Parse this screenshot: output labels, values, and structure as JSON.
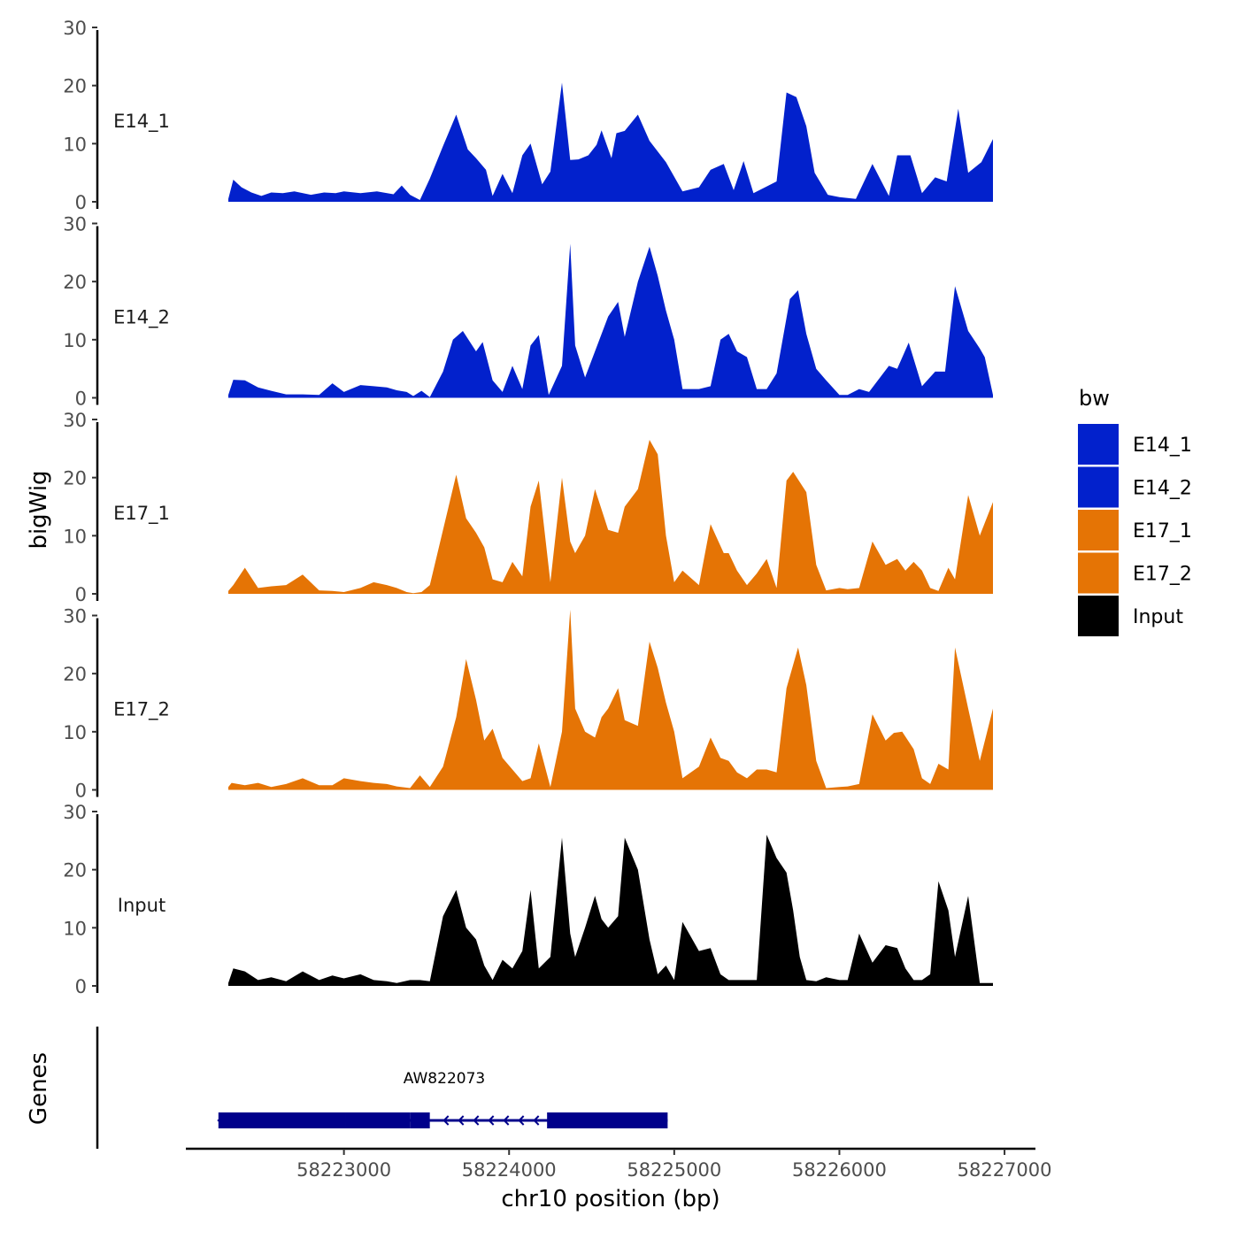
{
  "chart_data": {
    "type": "area",
    "title": "",
    "ylabel": "bigWig",
    "xlabel": "chr10 position (bp)",
    "gene_track_label": "Genes",
    "x_range": [
      58222300,
      58226930
    ],
    "x_ticks": [
      58223000,
      58224000,
      58225000,
      58226000,
      58227000
    ],
    "y_range": [
      0,
      30
    ],
    "y_ticks": [
      0,
      10,
      20,
      30
    ],
    "legend": {
      "title": "bw",
      "position": "right",
      "entries": [
        {
          "label": "E14_1",
          "color": "#0221CC"
        },
        {
          "label": "E14_2",
          "color": "#0221CC"
        },
        {
          "label": "E17_1",
          "color": "#E57405"
        },
        {
          "label": "E17_2",
          "color": "#E57405"
        },
        {
          "label": "Input",
          "color": "#000000"
        }
      ]
    },
    "series": [
      {
        "name": "E14_1",
        "color": "#0221CC",
        "x": [
          58222300,
          58222330,
          58222380,
          58222440,
          58222500,
          58222560,
          58222630,
          58222700,
          58222800,
          58222880,
          58222950,
          58223000,
          58223100,
          58223200,
          58223300,
          58223350,
          58223400,
          58223460,
          58223520,
          58223600,
          58223680,
          58223750,
          58223800,
          58223860,
          58223900,
          58223960,
          58224020,
          58224080,
          58224130,
          58224200,
          58224250,
          58224320,
          58224370,
          58224420,
          58224480,
          58224530,
          58224560,
          58224620,
          58224650,
          58224700,
          58224780,
          58224850,
          58224950,
          58225050,
          58225150,
          58225220,
          58225300,
          58225360,
          58225420,
          58225480,
          58225550,
          58225620,
          58225680,
          58225740,
          58225800,
          58225850,
          58225930,
          58226000,
          58226100,
          58226200,
          58226300,
          58226350,
          58226430,
          58226500,
          58226580,
          58226650,
          58226720,
          58226780,
          58226860,
          58226930
        ],
        "values": [
          0.5,
          3.8,
          2.5,
          1.6,
          1.0,
          1.6,
          1.5,
          1.8,
          1.2,
          1.6,
          1.5,
          1.8,
          1.5,
          1.8,
          1.3,
          2.8,
          1.2,
          0.3,
          4.0,
          9.6,
          15.0,
          9.0,
          7.5,
          5.5,
          1.0,
          4.8,
          1.5,
          8.0,
          10.0,
          3.0,
          5.2,
          20.5,
          7.2,
          7.3,
          8.0,
          9.8,
          12.3,
          7.5,
          11.8,
          12.2,
          15.0,
          10.5,
          6.8,
          1.8,
          2.5,
          5.5,
          6.5,
          2.0,
          7.0,
          1.5,
          2.5,
          3.5,
          18.8,
          18.0,
          13.0,
          5.0,
          1.2,
          0.8,
          0.5,
          6.5,
          1.0,
          8.0,
          8.0,
          1.5,
          4.2,
          3.5,
          16.0,
          5.0,
          6.8,
          10.8
        ]
      },
      {
        "name": "E14_2",
        "color": "#0221CC",
        "x": [
          58222300,
          58222330,
          58222400,
          58222480,
          58222560,
          58222650,
          58222750,
          58222850,
          58222930,
          58223000,
          58223100,
          58223180,
          58223260,
          58223320,
          58223380,
          58223420,
          58223470,
          58223520,
          58223600,
          58223660,
          58223720,
          58223800,
          58223840,
          58223900,
          58223960,
          58224020,
          58224080,
          58224130,
          58224180,
          58224240,
          58224320,
          58224370,
          58224400,
          58224460,
          58224520,
          58224600,
          58224660,
          58224700,
          58224780,
          58224850,
          58224900,
          58224950,
          58225000,
          58225050,
          58225150,
          58225220,
          58225280,
          58225330,
          58225380,
          58225440,
          58225500,
          58225560,
          58225620,
          58225700,
          58225750,
          58225800,
          58225860,
          58225920,
          58226000,
          58226050,
          58226120,
          58226180,
          58226300,
          58226350,
          58226420,
          58226500,
          58226580,
          58226640,
          58226700,
          58226780,
          58226850,
          58226880,
          58226930
        ],
        "values": [
          0.5,
          3.1,
          3.0,
          1.8,
          1.2,
          0.6,
          0.6,
          0.5,
          2.5,
          1.0,
          2.2,
          2.0,
          1.8,
          1.3,
          1.0,
          0.3,
          1.2,
          0.1,
          4.5,
          10.0,
          11.5,
          8.0,
          9.6,
          3.0,
          1.0,
          5.5,
          1.5,
          9.0,
          10.8,
          0.5,
          5.5,
          26.5,
          9.0,
          3.5,
          8.0,
          14.0,
          16.5,
          10.5,
          20.0,
          26.0,
          21.0,
          15.0,
          10.0,
          1.5,
          1.5,
          2.0,
          10.0,
          11.0,
          8.0,
          7.0,
          1.5,
          1.5,
          4.2,
          17.0,
          18.5,
          11.0,
          5.0,
          3.0,
          0.5,
          0.5,
          1.5,
          1.0,
          5.5,
          5.0,
          9.5,
          2.0,
          4.5,
          4.5,
          19.2,
          11.5,
          8.5,
          7.0,
          0.5
        ]
      },
      {
        "name": "E17_1",
        "color": "#E57405",
        "x": [
          58222300,
          58222330,
          58222400,
          58222480,
          58222560,
          58222650,
          58222750,
          58222850,
          58222930,
          58223000,
          58223100,
          58223180,
          58223260,
          58223320,
          58223380,
          58223420,
          58223470,
          58223520,
          58223600,
          58223680,
          58223740,
          58223800,
          58223850,
          58223900,
          58223960,
          58224020,
          58224080,
          58224130,
          58224180,
          58224250,
          58224320,
          58224370,
          58224400,
          58224460,
          58224520,
          58224600,
          58224660,
          58224700,
          58224780,
          58224850,
          58224900,
          58224950,
          58225000,
          58225050,
          58225150,
          58225220,
          58225300,
          58225330,
          58225380,
          58225440,
          58225500,
          58225560,
          58225620,
          58225680,
          58225720,
          58225800,
          58225860,
          58225920,
          58226000,
          58226050,
          58226120,
          58226200,
          58226280,
          58226350,
          58226400,
          58226450,
          58226500,
          58226550,
          58226600,
          58226660,
          58226700,
          58226780,
          58226850,
          58226930
        ],
        "values": [
          0.5,
          1.5,
          4.5,
          1.0,
          1.3,
          1.5,
          3.3,
          0.6,
          0.5,
          0.3,
          1.0,
          2.0,
          1.5,
          1.0,
          0.3,
          0.1,
          0.3,
          1.5,
          11.0,
          20.5,
          13.0,
          10.5,
          8.0,
          2.5,
          2.0,
          5.5,
          3.0,
          15.0,
          19.5,
          2.0,
          20.0,
          9.0,
          7.0,
          10.0,
          18.0,
          11.0,
          10.5,
          15.0,
          18.0,
          26.5,
          24.0,
          10.0,
          2.0,
          4.0,
          1.5,
          12.0,
          7.0,
          7.0,
          4.0,
          1.5,
          3.5,
          6.0,
          1.0,
          19.5,
          21.0,
          17.5,
          5.0,
          0.6,
          1.0,
          0.8,
          1.0,
          9.0,
          5.0,
          6.0,
          4.0,
          5.5,
          4.0,
          1.0,
          0.5,
          4.5,
          2.5,
          17.0,
          10.0,
          15.8
        ]
      },
      {
        "name": "E17_2",
        "color": "#E57405",
        "x": [
          58222300,
          58222320,
          58222400,
          58222480,
          58222560,
          58222650,
          58222750,
          58222850,
          58222930,
          58223000,
          58223100,
          58223180,
          58223260,
          58223320,
          58223400,
          58223460,
          58223520,
          58223600,
          58223680,
          58223740,
          58223800,
          58223850,
          58223900,
          58223960,
          58224020,
          58224080,
          58224130,
          58224180,
          58224250,
          58224320,
          58224370,
          58224400,
          58224460,
          58224520,
          58224560,
          58224600,
          58224660,
          58224700,
          58224780,
          58224850,
          58224900,
          58224950,
          58225000,
          58225050,
          58225150,
          58225220,
          58225280,
          58225330,
          58225380,
          58225440,
          58225500,
          58225560,
          58225620,
          58225680,
          58225750,
          58225800,
          58225860,
          58225920,
          58226000,
          58226050,
          58226120,
          58226200,
          58226280,
          58226330,
          58226380,
          58226450,
          58226500,
          58226550,
          58226600,
          58226660,
          58226700,
          58226780,
          58226850,
          58226930
        ],
        "values": [
          0.5,
          1.2,
          0.8,
          1.2,
          0.5,
          1.0,
          2.0,
          0.8,
          0.8,
          2.0,
          1.5,
          1.2,
          1.0,
          0.6,
          0.3,
          2.5,
          0.5,
          4.0,
          12.5,
          22.5,
          15.5,
          8.5,
          10.5,
          5.5,
          3.5,
          1.5,
          2.0,
          8.0,
          0.5,
          10.0,
          31.0,
          14.0,
          10.0,
          9.0,
          12.5,
          14.0,
          17.5,
          12.0,
          11.0,
          25.5,
          21.0,
          15.0,
          10.0,
          2.0,
          4.0,
          9.0,
          5.5,
          5.0,
          3.0,
          2.0,
          3.5,
          3.5,
          3.0,
          17.5,
          24.5,
          18.0,
          5.0,
          0.3,
          0.5,
          0.6,
          1.0,
          13.0,
          8.5,
          9.8,
          10.0,
          7.0,
          2.0,
          1.0,
          4.5,
          3.5,
          24.5,
          14.0,
          5.0,
          14.0
        ]
      },
      {
        "name": "Input",
        "color": "#000000",
        "x": [
          58222300,
          58222330,
          58222400,
          58222480,
          58222560,
          58222650,
          58222750,
          58222850,
          58222930,
          58223000,
          58223100,
          58223180,
          58223260,
          58223320,
          58223400,
          58223460,
          58223520,
          58223600,
          58223680,
          58223740,
          58223800,
          58223850,
          58223900,
          58223960,
          58224020,
          58224080,
          58224130,
          58224180,
          58224250,
          58224320,
          58224370,
          58224400,
          58224460,
          58224520,
          58224560,
          58224600,
          58224660,
          58224700,
          58224780,
          58224850,
          58224900,
          58224950,
          58225000,
          58225050,
          58225150,
          58225220,
          58225280,
          58225330,
          58225380,
          58225440,
          58225500,
          58225560,
          58225620,
          58225680,
          58225720,
          58225760,
          58225800,
          58225860,
          58225920,
          58226000,
          58226050,
          58226120,
          58226200,
          58226280,
          58226350,
          58226400,
          58226450,
          58226500,
          58226550,
          58226600,
          58226660,
          58226700,
          58226780,
          58226850,
          58226930
        ],
        "values": [
          0.5,
          3.0,
          2.5,
          1.0,
          1.5,
          0.8,
          2.5,
          1.0,
          1.8,
          1.3,
          2.0,
          1.0,
          0.8,
          0.5,
          1.0,
          1.0,
          0.8,
          12.0,
          16.5,
          10.0,
          8.0,
          3.5,
          1.0,
          4.5,
          3.0,
          6.0,
          16.5,
          3.0,
          5.0,
          25.5,
          9.0,
          5.0,
          10.0,
          15.5,
          11.5,
          10.0,
          12.0,
          25.5,
          20.0,
          8.0,
          2.0,
          3.5,
          1.0,
          11.0,
          6.0,
          6.5,
          2.0,
          1.0,
          1.0,
          1.0,
          1.0,
          26.0,
          22.0,
          19.5,
          13.0,
          5.0,
          1.0,
          0.8,
          1.5,
          1.0,
          1.0,
          9.0,
          4.0,
          7.0,
          6.5,
          3.0,
          1.0,
          1.0,
          2.0,
          18.0,
          13.0,
          5.0,
          15.5,
          0.5,
          0.5
        ]
      }
    ],
    "gene_track": {
      "gene_name": "AW822073",
      "strand": "-",
      "start": 58222240,
      "end": 58224960,
      "exons": [
        {
          "start": 58222240,
          "end": 58223010
        },
        {
          "start": 58223010,
          "end": 58223400
        },
        {
          "start": 58223400,
          "end": 58223520
        },
        {
          "start": 58224230,
          "end": 58224960
        }
      ]
    }
  }
}
